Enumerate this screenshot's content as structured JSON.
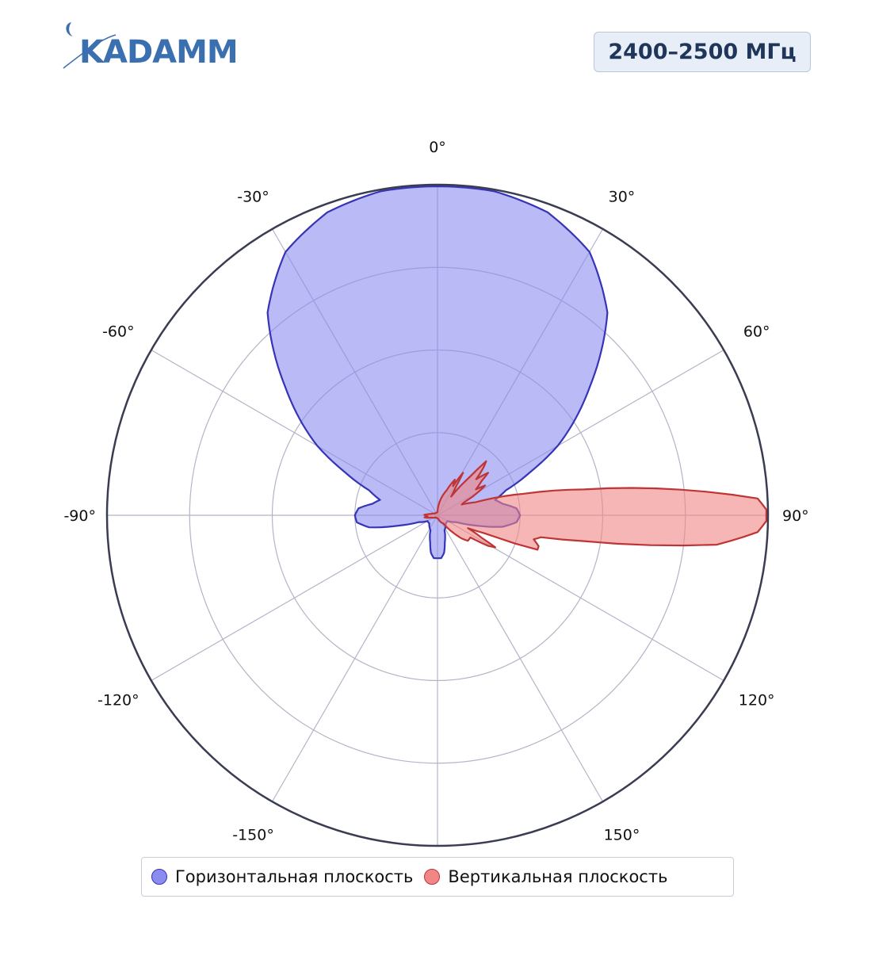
{
  "logo": {
    "text": "KADAMM",
    "color": "#3a6fb0"
  },
  "badge": {
    "text": "2400–2500 МГц"
  },
  "chart_data": {
    "type": "polar",
    "angle_ticks": [
      {
        "angle": 0,
        "label": "0°"
      },
      {
        "angle": 30,
        "label": "30°"
      },
      {
        "angle": 60,
        "label": "60°"
      },
      {
        "angle": 90,
        "label": "90°"
      },
      {
        "angle": 120,
        "label": "120°"
      },
      {
        "angle": 150,
        "label": "150°"
      },
      {
        "angle": 180,
        "label": ""
      },
      {
        "angle": -150,
        "label": "-150°"
      },
      {
        "angle": -120,
        "label": "-120°"
      },
      {
        "angle": -90,
        "label": "-90°"
      },
      {
        "angle": -60,
        "label": "-60°"
      },
      {
        "angle": -30,
        "label": "-30°"
      }
    ],
    "radial_rings": [
      0.25,
      0.5,
      0.75,
      1.0
    ],
    "grid": true,
    "legend_position": "bottom",
    "series": [
      {
        "name": "Горизонтальная плоскость",
        "fill": "#8b8cf0",
        "stroke": "#3535b5",
        "points": [
          [
            0,
            0.995
          ],
          [
            10,
            0.995
          ],
          [
            20,
            0.975
          ],
          [
            30,
            0.92
          ],
          [
            40,
            0.8
          ],
          [
            50,
            0.6
          ],
          [
            60,
            0.42
          ],
          [
            65,
            0.31
          ],
          [
            70,
            0.22
          ],
          [
            75,
            0.18
          ],
          [
            80,
            0.2
          ],
          [
            85,
            0.24
          ],
          [
            90,
            0.25
          ],
          [
            95,
            0.24
          ],
          [
            100,
            0.2
          ],
          [
            105,
            0.12
          ],
          [
            110,
            0.06
          ],
          [
            120,
            0.035
          ],
          [
            135,
            0.035
          ],
          [
            155,
            0.05
          ],
          [
            165,
            0.085
          ],
          [
            170,
            0.115
          ],
          [
            175,
            0.13
          ],
          [
            180,
            0.13
          ],
          [
            185,
            0.13
          ],
          [
            190,
            0.115
          ],
          [
            195,
            0.085
          ],
          [
            205,
            0.05
          ],
          [
            225,
            0.035
          ],
          [
            240,
            0.035
          ],
          [
            250,
            0.06
          ],
          [
            255,
            0.12
          ],
          [
            260,
            0.21
          ],
          [
            265,
            0.245
          ],
          [
            270,
            0.25
          ],
          [
            275,
            0.24
          ],
          [
            280,
            0.2
          ],
          [
            285,
            0.18
          ],
          [
            290,
            0.22
          ],
          [
            295,
            0.31
          ],
          [
            300,
            0.42
          ],
          [
            310,
            0.6
          ],
          [
            320,
            0.8
          ],
          [
            330,
            0.92
          ],
          [
            340,
            0.975
          ],
          [
            350,
            0.995
          ]
        ]
      },
      {
        "name": "Вертикальная плоскость",
        "fill": "#f08686",
        "stroke": "#bf3434",
        "points": [
          [
            0,
            0.01
          ],
          [
            20,
            0.08
          ],
          [
            26,
            0.12
          ],
          [
            28,
            0.1
          ],
          [
            31,
            0.15
          ],
          [
            33,
            0.1
          ],
          [
            36,
            0.07
          ],
          [
            40,
            0.15
          ],
          [
            42,
            0.22
          ],
          [
            44,
            0.2
          ],
          [
            47,
            0.16
          ],
          [
            50,
            0.2
          ],
          [
            52,
            0.17
          ],
          [
            56,
            0.14
          ],
          [
            58,
            0.17
          ],
          [
            62,
            0.12
          ],
          [
            64,
            0.09
          ],
          [
            66,
            0.08
          ],
          [
            71,
            0.12
          ],
          [
            76,
            0.27
          ],
          [
            80,
            0.45
          ],
          [
            84,
            0.74
          ],
          [
            87,
            0.97
          ],
          [
            89,
            0.995
          ],
          [
            91,
            0.995
          ],
          [
            93,
            0.97
          ],
          [
            96,
            0.85
          ],
          [
            100,
            0.45
          ],
          [
            102,
            0.32
          ],
          [
            104,
            0.3
          ],
          [
            107,
            0.32
          ],
          [
            109,
            0.32
          ],
          [
            110,
            0.25
          ],
          [
            111,
            0.15
          ],
          [
            113,
            0.1
          ],
          [
            117,
            0.15
          ],
          [
            119,
            0.2
          ],
          [
            121,
            0.18
          ],
          [
            124,
            0.12
          ],
          [
            128,
            0.12
          ],
          [
            130,
            0.12
          ],
          [
            134,
            0.1
          ],
          [
            138,
            0.07
          ],
          [
            145,
            0.03
          ],
          [
            170,
            0.01
          ],
          [
            200,
            0.008
          ],
          [
            230,
            0.01
          ],
          [
            250,
            0.02
          ],
          [
            258,
            0.035
          ],
          [
            261,
            0.04
          ],
          [
            264,
            0.03
          ],
          [
            268,
            0.035
          ],
          [
            272,
            0.04
          ],
          [
            276,
            0.03
          ],
          [
            282,
            0.02
          ],
          [
            300,
            0.01
          ],
          [
            340,
            0.008
          ]
        ]
      }
    ]
  },
  "legend": {
    "items": [
      {
        "label": "Горизонтальная плоскость",
        "color": "#8b8cf0",
        "border": "#3535b5"
      },
      {
        "label": "Вертикальная плоскость",
        "color": "#f08686",
        "border": "#bf3434"
      }
    ]
  }
}
